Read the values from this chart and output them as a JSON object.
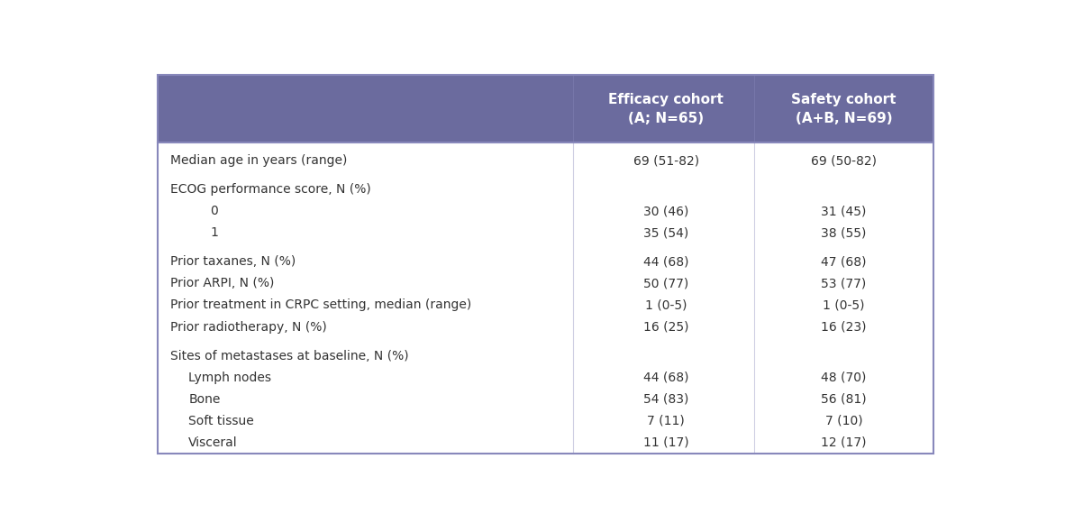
{
  "header_bg_color": "#6b6b9e",
  "header_text_color": "#ffffff",
  "body_bg_color": "#ffffff",
  "border_color": "#8888bb",
  "text_color": "#333333",
  "col1_header": "Efficacy cohort\n(A; N=65)",
  "col2_header": "Safety cohort\n(A+B, N=69)",
  "rows": [
    {
      "label": "Median age in years (range)",
      "indent": 0,
      "col1": "69 (51-82)",
      "col2": "69 (50-82)",
      "spacer_before": true
    },
    {
      "label": "ECOG performance score, N (%)",
      "indent": 0,
      "col1": "",
      "col2": "",
      "spacer_before": true
    },
    {
      "label": "0",
      "indent": 2,
      "col1": "30 (46)",
      "col2": "31 (45)",
      "spacer_before": false
    },
    {
      "label": "1",
      "indent": 2,
      "col1": "35 (54)",
      "col2": "38 (55)",
      "spacer_before": false
    },
    {
      "label": "Prior taxanes, N (%)",
      "indent": 0,
      "col1": "44 (68)",
      "col2": "47 (68)",
      "spacer_before": true
    },
    {
      "label": "Prior ARPI, N (%)",
      "indent": 0,
      "col1": "50 (77)",
      "col2": "53 (77)",
      "spacer_before": false
    },
    {
      "label": "Prior treatment in CRPC setting, median (range)",
      "indent": 0,
      "col1": "1 (0-5)",
      "col2": "1 (0-5)",
      "spacer_before": false
    },
    {
      "label": "Prior radiotherapy, N (%)",
      "indent": 0,
      "col1": "16 (25)",
      "col2": "16 (23)",
      "spacer_before": false
    },
    {
      "label": "Sites of metastases at baseline, N (%)",
      "indent": 0,
      "col1": "",
      "col2": "",
      "spacer_before": true
    },
    {
      "label": "Lymph nodes",
      "indent": 1,
      "col1": "44 (68)",
      "col2": "48 (70)",
      "spacer_before": false
    },
    {
      "label": "Bone",
      "indent": 1,
      "col1": "54 (83)",
      "col2": "56 (81)",
      "spacer_before": false
    },
    {
      "label": "Soft tissue",
      "indent": 1,
      "col1": "7 (11)",
      "col2": "7 (10)",
      "spacer_before": false
    },
    {
      "label": "Visceral",
      "indent": 1,
      "col1": "11 (17)",
      "col2": "12 (17)",
      "spacer_before": false
    }
  ],
  "figure_bg": "#ffffff",
  "indent_sizes": {
    "0": 0.0,
    "1": 0.022,
    "2": 0.048
  }
}
